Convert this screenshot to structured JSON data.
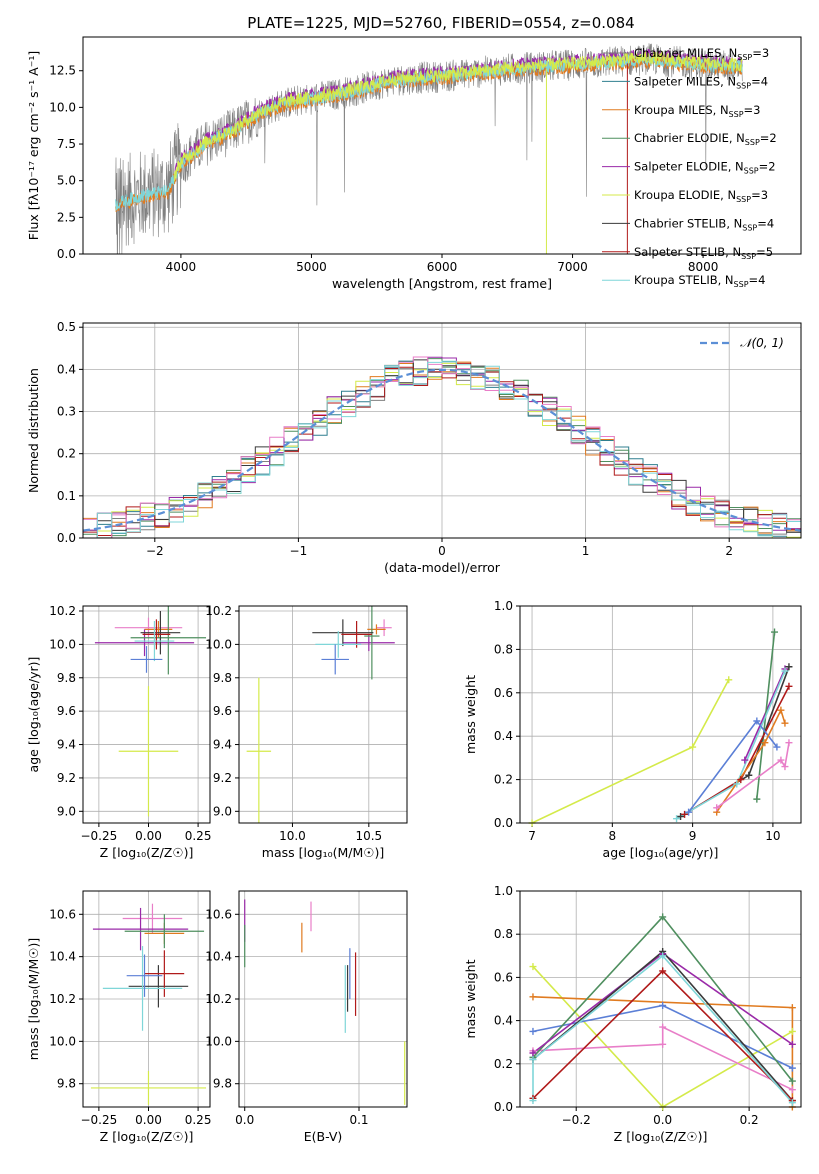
{
  "colors": {
    "Chabrier MILES": "#808080",
    "Salpeter MILES": "#2f7f8f",
    "Kroupa MILES": "#e07b20",
    "Chabrier ELODIE": "#4f8f5f",
    "Salpeter ELODIE": "#9a2aa8",
    "Kroupa ELODIE": "#d4ea4a",
    "Chabrier STELIB": "#3a3a3a",
    "Salpeter STELIB": "#b01a1a",
    "Kroupa STELIB": "#7fd6d8",
    "gauss": "#5b8fd6",
    "extra_pink": "#e87ec8",
    "extra_blue": "#5b7fd6"
  },
  "chart_data": [
    {
      "id": "spectrum",
      "type": "line",
      "title": "PLATE=1225, MJD=52760, FIBERID=0554, z=0.084",
      "xlabel": "wavelength [Angstrom, rest frame]",
      "ylabel_prefix": "Flux [f",
      "ylabel": "Flux [fλ10⁻¹⁷ erg cm⁻² s⁻¹ A⁻¹]",
      "xlim": [
        3250,
        8750
      ],
      "ylim": [
        0,
        14.8
      ],
      "xticks": [
        4000,
        5000,
        6000,
        7000,
        8000
      ],
      "yticks": [
        0.0,
        2.5,
        5.0,
        7.5,
        10.0,
        12.5
      ],
      "ytick_labels": [
        "0.0",
        "2.5",
        "5.0",
        "7.5",
        "10.0",
        "12.5"
      ],
      "legend": [
        {
          "name": "Chabrier MILES",
          "nssp": "3"
        },
        {
          "name": "Salpeter MILES",
          "nssp": "4"
        },
        {
          "name": "Kroupa MILES",
          "nssp": "3"
        },
        {
          "name": "Chabrier ELODIE",
          "nssp": "2"
        },
        {
          "name": "Salpeter ELODIE",
          "nssp": "2"
        },
        {
          "name": "Kroupa ELODIE",
          "nssp": "3"
        },
        {
          "name": "Chabrier STELIB",
          "nssp": "4"
        },
        {
          "name": "Salpeter STELIB",
          "nssp": "5"
        },
        {
          "name": "Kroupa STELIB",
          "nssp": "4"
        }
      ],
      "legend_placement": "right",
      "continuum": [
        [
          3500,
          3.4
        ],
        [
          3700,
          4.0
        ],
        [
          3900,
          4.3
        ],
        [
          4000,
          6.2
        ],
        [
          4200,
          7.6
        ],
        [
          4400,
          8.4
        ],
        [
          4600,
          9.6
        ],
        [
          4800,
          10.3
        ],
        [
          5000,
          10.6
        ],
        [
          5200,
          10.9
        ],
        [
          5400,
          11.3
        ],
        [
          5600,
          11.8
        ],
        [
          5800,
          12.0
        ],
        [
          6000,
          12.1
        ],
        [
          6200,
          12.3
        ],
        [
          6500,
          12.6
        ],
        [
          6800,
          12.8
        ],
        [
          7000,
          12.9
        ],
        [
          7300,
          13.1
        ],
        [
          7600,
          13.3
        ],
        [
          8000,
          12.9
        ],
        [
          8300,
          12.8
        ]
      ]
    },
    {
      "id": "histogram",
      "type": "histogram",
      "xlabel": "(data-model)/error",
      "ylabel": "Normed distribution",
      "xlim": [
        -2.5,
        2.5
      ],
      "ylim": [
        0,
        0.51
      ],
      "xticks": [
        -2,
        -1,
        0,
        1,
        2
      ],
      "xtick_labels": [
        "−2",
        "−1",
        "0",
        "1",
        "2"
      ],
      "yticks": [
        0.0,
        0.1,
        0.2,
        0.3,
        0.4,
        0.5
      ],
      "ytick_labels": [
        "0.0",
        "0.1",
        "0.2",
        "0.3",
        "0.4",
        "0.5"
      ],
      "grid": true,
      "legend": "𝒩(0, 1)",
      "legend_placement": "top-right",
      "bin_width": 0.1
    },
    {
      "id": "age_vs_Z",
      "type": "errorbar",
      "xlabel": "Z [log₁₀(Z/Z☉)]",
      "ylabel": "age  [log₁₀(age/yr)]",
      "xlim": [
        -0.33,
        0.31
      ],
      "ylim": [
        8.93,
        10.23
      ],
      "xticks": [
        -0.25,
        0.0,
        0.25
      ],
      "xtick_labels": [
        "−0.25",
        "0.00",
        "0.25"
      ],
      "yticks": [
        9.0,
        9.2,
        9.4,
        9.6,
        9.8,
        10.0,
        10.2
      ],
      "ytick_labels": [
        "9.0",
        "9.2",
        "9.4",
        "9.6",
        "9.8",
        "10.0",
        "10.2"
      ],
      "grid": true,
      "points": [
        {
          "c": "extra_pink",
          "x": 0.0,
          "y": 10.1,
          "xe": 0.17,
          "ye": 0.06
        },
        {
          "c": "Kroupa MILES",
          "x": 0.05,
          "y": 10.09,
          "xe": 0.07,
          "ye": 0.05
        },
        {
          "c": "Salpeter ELODIE",
          "x": -0.02,
          "y": 10.01,
          "xe": 0.25,
          "ye": 0.08
        },
        {
          "c": "Chabrier ELODIE",
          "x": 0.1,
          "y": 10.04,
          "xe": 0.19,
          "ye": 0.22
        },
        {
          "c": "Chabrier STELIB",
          "x": 0.06,
          "y": 10.07,
          "xe": 0.1,
          "ye": 0.13
        },
        {
          "c": "Salpeter STELIB",
          "x": 0.04,
          "y": 10.06,
          "xe": 0.07,
          "ye": 0.09
        },
        {
          "c": "Kroupa STELIB",
          "x": 0.03,
          "y": 10.02,
          "xe": 0.1,
          "ye": 0.12
        },
        {
          "c": "extra_blue",
          "x": -0.01,
          "y": 9.91,
          "xe": 0.08,
          "ye": 0.08
        },
        {
          "c": "Kroupa ELODIE",
          "x": 0.0,
          "y": 9.36,
          "xe": 0.15,
          "ye": 0.39
        }
      ]
    },
    {
      "id": "age_vs_mass",
      "type": "errorbar",
      "xlabel": "mass [log₁₀(M/M☉)]",
      "xlim": [
        9.65,
        10.75
      ],
      "ylim": [
        8.93,
        10.23
      ],
      "xticks": [
        10.0,
        10.5
      ],
      "xtick_labels": [
        "10.0",
        "10.5"
      ],
      "yticks": [
        9.0,
        9.2,
        9.4,
        9.6,
        9.8,
        10.0,
        10.2
      ],
      "ytick_labels": [
        "9.0",
        "9.2",
        "9.4",
        "9.6",
        "9.8",
        "10.0",
        "10.2"
      ],
      "grid": true,
      "points": [
        {
          "c": "extra_pink",
          "x": 10.6,
          "y": 10.1,
          "xe": 0.05,
          "ye": 0.05
        },
        {
          "c": "Kroupa MILES",
          "x": 10.55,
          "y": 10.09,
          "xe": 0.06,
          "ye": 0.03
        },
        {
          "c": "Salpeter ELODIE",
          "x": 10.5,
          "y": 10.01,
          "xe": 0.17,
          "ye": 0.05
        },
        {
          "c": "Chabrier ELODIE",
          "x": 10.52,
          "y": 10.05,
          "xe": 0.05,
          "ye": 0.26
        },
        {
          "c": "Chabrier STELIB",
          "x": 10.33,
          "y": 10.07,
          "xe": 0.2,
          "ye": 0.08
        },
        {
          "c": "Salpeter STELIB",
          "x": 10.42,
          "y": 10.06,
          "xe": 0.1,
          "ye": 0.08
        },
        {
          "c": "Kroupa STELIB",
          "x": 10.3,
          "y": 10.0,
          "xe": 0.15,
          "ye": 0.08
        },
        {
          "c": "extra_blue",
          "x": 10.28,
          "y": 9.91,
          "xe": 0.09,
          "ye": 0.09
        },
        {
          "c": "Kroupa ELODIE",
          "x": 9.78,
          "y": 9.36,
          "xe": 0.08,
          "ye": 0.44
        }
      ]
    },
    {
      "id": "massweight_vs_age",
      "type": "line",
      "xlabel": "age  [log₁₀(age/yr)]",
      "ylabel": "mass weight",
      "xlim": [
        6.85,
        10.35
      ],
      "ylim": [
        0,
        1
      ],
      "xticks": [
        7,
        8,
        9,
        10
      ],
      "xtick_labels": [
        "7",
        "8",
        "9",
        "10"
      ],
      "yticks": [
        0,
        0.2,
        0.4,
        0.6,
        0.8,
        1.0
      ],
      "ytick_labels": [
        "0.0",
        "0.2",
        "0.4",
        "0.6",
        "0.8",
        "1.0"
      ],
      "grid": true,
      "series": [
        {
          "c": "Kroupa ELODIE",
          "pts": [
            [
              7.0,
              0.0
            ],
            [
              9.0,
              0.35
            ],
            [
              9.45,
              0.66
            ]
          ]
        },
        {
          "c": "Salpeter ELODIE",
          "pts": [
            [
              9.65,
              0.29
            ],
            [
              10.15,
              0.71
            ]
          ]
        },
        {
          "c": "Chabrier ELODIE",
          "pts": [
            [
              9.8,
              0.11
            ],
            [
              10.02,
              0.88
            ]
          ]
        },
        {
          "c": "Chabrier STELIB",
          "pts": [
            [
              8.85,
              0.03
            ],
            [
              9.7,
              0.22
            ],
            [
              10.2,
              0.72
            ]
          ]
        },
        {
          "c": "Salpeter STELIB",
          "pts": [
            [
              8.9,
              0.04
            ],
            [
              9.6,
              0.2
            ],
            [
              10.2,
              0.63
            ]
          ]
        },
        {
          "c": "Kroupa STELIB",
          "pts": [
            [
              8.8,
              0.02
            ],
            [
              9.55,
              0.18
            ],
            [
              10.15,
              0.7
            ]
          ]
        },
        {
          "c": "extra_blue",
          "pts": [
            [
              8.95,
              0.05
            ],
            [
              9.8,
              0.47
            ],
            [
              10.05,
              0.35
            ]
          ]
        },
        {
          "c": "Kroupa MILES",
          "pts": [
            [
              9.3,
              0.05
            ],
            [
              9.9,
              0.37
            ],
            [
              10.1,
              0.52
            ],
            [
              10.15,
              0.46
            ]
          ]
        },
        {
          "c": "extra_pink",
          "pts": [
            [
              9.3,
              0.07
            ],
            [
              10.1,
              0.29
            ],
            [
              10.15,
              0.26
            ],
            [
              10.2,
              0.37
            ]
          ]
        }
      ]
    },
    {
      "id": "mass_vs_Z",
      "type": "errorbar",
      "xlabel": "Z [log₁₀(Z/Z☉)]",
      "ylabel": "mass [log₁₀(M/M☉)]",
      "xlim": [
        -0.33,
        0.31
      ],
      "ylim": [
        9.69,
        10.71
      ],
      "xticks": [
        -0.25,
        0.0,
        0.25
      ],
      "xtick_labels": [
        "−0.25",
        "0.00",
        "0.25"
      ],
      "yticks": [
        9.8,
        10.0,
        10.2,
        10.4,
        10.6
      ],
      "ytick_labels": [
        "9.8",
        "10.0",
        "10.2",
        "10.4",
        "10.6"
      ],
      "grid": true,
      "points": [
        {
          "c": "extra_pink",
          "x": 0.02,
          "y": 10.58,
          "xe": 0.15,
          "ye": 0.07
        },
        {
          "c": "Kroupa MILES",
          "x": 0.08,
          "y": 10.51,
          "xe": 0.1,
          "ye": 0.05
        },
        {
          "c": "Salpeter ELODIE",
          "x": -0.04,
          "y": 10.53,
          "xe": 0.24,
          "ye": 0.1
        },
        {
          "c": "Chabrier ELODIE",
          "x": 0.08,
          "y": 10.52,
          "xe": 0.2,
          "ye": 0.08
        },
        {
          "c": "Chabrier STELIB",
          "x": 0.05,
          "y": 10.26,
          "xe": 0.15,
          "ye": 0.1
        },
        {
          "c": "Salpeter STELIB",
          "x": 0.08,
          "y": 10.32,
          "xe": 0.1,
          "ye": 0.11
        },
        {
          "c": "Kroupa STELIB",
          "x": -0.03,
          "y": 10.25,
          "xe": 0.2,
          "ye": 0.2
        },
        {
          "c": "extra_blue",
          "x": -0.02,
          "y": 10.31,
          "xe": 0.09,
          "ye": 0.1
        },
        {
          "c": "Kroupa ELODIE",
          "x": 0.0,
          "y": 9.78,
          "xe": 0.29,
          "ye": 0.08
        }
      ]
    },
    {
      "id": "mass_vs_ebv",
      "type": "errorbar",
      "xlabel": "E(B-V)",
      "xlim": [
        -0.005,
        0.142
      ],
      "ylim": [
        9.69,
        10.71
      ],
      "xticks": [
        0.0,
        0.1
      ],
      "xtick_labels": [
        "0.0",
        "0.1"
      ],
      "yticks": [
        9.8,
        10.0,
        10.2,
        10.4,
        10.6
      ],
      "ytick_labels": [
        "9.8",
        "10.0",
        "10.2",
        "10.4",
        "10.6"
      ],
      "grid": true,
      "points": [
        {
          "c": "Salpeter ELODIE",
          "x": 0.0,
          "y": 10.57,
          "xe": 0,
          "ye": 0.1
        },
        {
          "c": "Chabrier ELODIE",
          "x": 0.0,
          "y": 10.45,
          "xe": 0,
          "ye": 0.1
        },
        {
          "c": "Kroupa MILES",
          "x": 0.05,
          "y": 10.49,
          "xe": 0,
          "ye": 0.07
        },
        {
          "c": "extra_pink",
          "x": 0.058,
          "y": 10.59,
          "xe": 0,
          "ye": 0.07
        },
        {
          "c": "Kroupa STELIB",
          "x": 0.088,
          "y": 10.2,
          "xe": 0,
          "ye": 0.16
        },
        {
          "c": "extra_blue",
          "x": 0.092,
          "y": 10.32,
          "xe": 0,
          "ye": 0.12
        },
        {
          "c": "Chabrier STELIB",
          "x": 0.09,
          "y": 10.25,
          "xe": 0,
          "ye": 0.11
        },
        {
          "c": "Salpeter STELIB",
          "x": 0.097,
          "y": 10.27,
          "xe": 0,
          "ye": 0.15
        },
        {
          "c": "Kroupa ELODIE",
          "x": 0.14,
          "y": 9.85,
          "xe": 0,
          "ye": 0.15
        }
      ]
    },
    {
      "id": "massweight_vs_Z",
      "type": "line",
      "xlabel": "Z [log₁₀(Z/Z☉)]",
      "ylabel": "mass weight",
      "xlim": [
        -0.33,
        0.32
      ],
      "ylim": [
        0,
        1
      ],
      "xticks": [
        -0.2,
        0.0,
        0.2
      ],
      "xtick_labels": [
        "−0.2",
        "0.0",
        "0.2"
      ],
      "yticks": [
        0,
        0.2,
        0.4,
        0.6,
        0.8,
        1.0
      ],
      "ytick_labels": [
        "0.0",
        "0.2",
        "0.4",
        "0.6",
        "0.8",
        "1.0"
      ],
      "grid": true,
      "series": [
        {
          "c": "Kroupa ELODIE",
          "pts": [
            [
              -0.3,
              0.65
            ],
            [
              0.0,
              0.0
            ],
            [
              0.3,
              0.35
            ]
          ]
        },
        {
          "c": "Kroupa MILES",
          "pts": [
            [
              -0.3,
              0.51
            ],
            [
              0.3,
              0.46
            ],
            [
              0.3,
              0.0
            ]
          ]
        },
        {
          "c": "extra_blue",
          "pts": [
            [
              -0.3,
              0.35
            ],
            [
              0.0,
              0.47
            ],
            [
              0.3,
              0.18
            ]
          ]
        },
        {
          "c": "extra_pink",
          "pts": [
            [
              -0.3,
              0.26
            ],
            [
              0.0,
              0.29
            ],
            [
              0.0,
              0.37
            ],
            [
              0.3,
              0.08
            ]
          ]
        },
        {
          "c": "Chabrier ELODIE",
          "pts": [
            [
              -0.3,
              0.23
            ],
            [
              0.0,
              0.88
            ],
            [
              0.3,
              0.12
            ]
          ]
        },
        {
          "c": "Salpeter ELODIE",
          "pts": [
            [
              -0.3,
              0.25
            ],
            [
              0.0,
              0.71
            ],
            [
              0.3,
              0.29
            ]
          ]
        },
        {
          "c": "Chabrier STELIB",
          "pts": [
            [
              -0.3,
              0.22
            ],
            [
              0.0,
              0.72
            ],
            [
              0.3,
              0.03
            ]
          ]
        },
        {
          "c": "Salpeter STELIB",
          "pts": [
            [
              -0.3,
              0.04
            ],
            [
              0.0,
              0.63
            ],
            [
              0.3,
              0.03
            ]
          ]
        },
        {
          "c": "Kroupa STELIB",
          "pts": [
            [
              -0.3,
              0.03
            ],
            [
              -0.3,
              0.22
            ],
            [
              0.0,
              0.7
            ],
            [
              0.3,
              0.02
            ]
          ]
        }
      ]
    }
  ]
}
